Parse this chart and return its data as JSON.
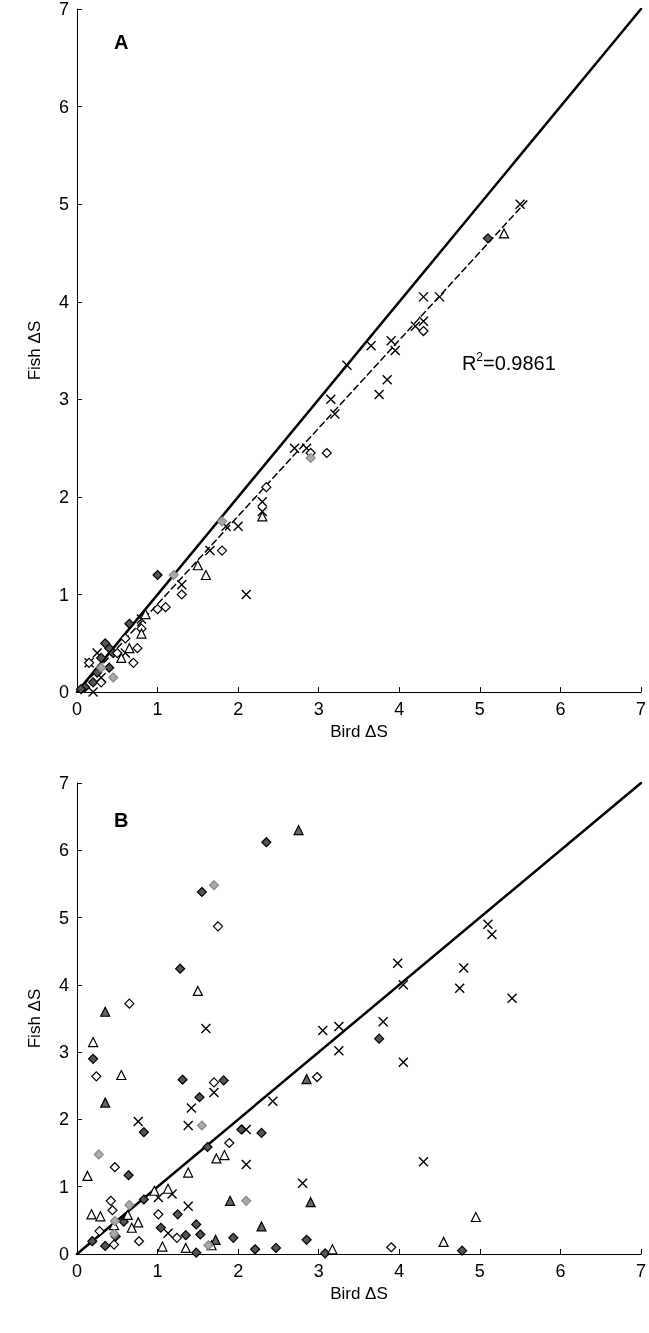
{
  "chart_data": [
    {
      "type": "scatter",
      "title": "A",
      "xlabel": "Bird ΔS",
      "ylabel": "Fish ΔS",
      "xlim": [
        0,
        7
      ],
      "ylim": [
        0,
        7
      ],
      "xticks": [
        0,
        1,
        2,
        3,
        4,
        5,
        6,
        7
      ],
      "yticks": [
        0,
        1,
        2,
        3,
        4,
        5,
        6,
        7
      ],
      "annotations": [
        "R$^{2}$=0.9861"
      ],
      "series": [
        {
          "type": "line",
          "color": "#000000",
          "marker": "none",
          "line_style": "solid",
          "x": [
            0,
            7
          ],
          "values": [
            0,
            7
          ]
        },
        {
          "type": "line",
          "color": "#000000",
          "marker": "none",
          "line_style": "dashed",
          "x": [
            0,
            5.6
          ],
          "values": [
            0,
            5.05
          ]
        },
        {
          "color": "#000000",
          "marker": "cross",
          "x": [
            5.5,
            4.5,
            4.3,
            4.2,
            4.3,
            3.9,
            3.95,
            3.65,
            3.75,
            3.85,
            3.35,
            3.15,
            3.2,
            2.7,
            2.85,
            2.3,
            2.3,
            2.1,
            2.0,
            1.85,
            1.65,
            1.3,
            0.8,
            0.6,
            0.3,
            0.25,
            0.2,
            0.15
          ],
          "values": [
            5.0,
            4.05,
            4.05,
            3.75,
            3.8,
            3.6,
            3.5,
            3.55,
            3.05,
            3.2,
            3.35,
            3.0,
            2.85,
            2.5,
            2.5,
            1.95,
            1.85,
            1.0,
            1.7,
            1.7,
            1.45,
            1.1,
            0.75,
            0.4,
            0.15,
            0.4,
            0.0,
            0.3
          ]
        },
        {
          "color": "#555555",
          "marker": "diamond",
          "x": [
            5.1,
            1.0,
            0.65,
            0.4,
            0.3,
            0.25,
            0.35,
            0.45,
            0.2,
            0.1,
            0.05,
            0.4
          ],
          "values": [
            4.65,
            1.2,
            0.7,
            0.45,
            0.35,
            0.2,
            0.5,
            0.4,
            0.1,
            0.05,
            0.03,
            0.25
          ]
        },
        {
          "color": "#ffffff",
          "marker": "diamond",
          "x": [
            4.3,
            3.1,
            2.9,
            2.35,
            1.8,
            1.3,
            1.1,
            1.0,
            0.8,
            0.75,
            0.6,
            0.5,
            0.15,
            0.3,
            0.7
          ],
          "values": [
            3.7,
            2.45,
            2.45,
            2.1,
            1.45,
            1.0,
            0.87,
            0.85,
            0.65,
            0.45,
            0.55,
            0.4,
            0.3,
            0.1,
            0.3
          ]
        },
        {
          "color": "#ffffff",
          "marker": "triangle",
          "x": [
            5.3,
            2.3,
            1.6,
            1.5,
            0.85,
            0.8,
            0.65,
            0.55
          ],
          "values": [
            4.7,
            1.8,
            1.2,
            1.3,
            0.8,
            0.6,
            0.45,
            0.35
          ]
        },
        {
          "color": "#aaaaaa",
          "marker": "diamond",
          "x": [
            1.2,
            1.8,
            2.9,
            0.45,
            0.3
          ],
          "values": [
            1.2,
            1.75,
            2.4,
            0.15,
            0.25
          ]
        }
      ]
    },
    {
      "type": "scatter",
      "title": "B",
      "xlabel": "Bird ΔS",
      "ylabel": "Fish ΔS",
      "xlim": [
        0,
        7
      ],
      "ylim": [
        0,
        7
      ],
      "xticks": [
        0,
        1,
        2,
        3,
        4,
        5,
        6,
        7
      ],
      "yticks": [
        0,
        1,
        2,
        3,
        4,
        5,
        6,
        7
      ],
      "series": [
        {
          "type": "line",
          "color": "#000000",
          "marker": "none",
          "line_style": "solid",
          "x": [
            0,
            7
          ],
          "values": [
            0,
            7
          ]
        },
        {
          "color": "#000000",
          "marker": "cross",
          "x": [
            5.1,
            5.15,
            5.4,
            4.8,
            4.75,
            3.98,
            4.05,
            4.05,
            3.8,
            3.25,
            3.05,
            3.25,
            4.3,
            0.76,
            1.42,
            1.7,
            1.38,
            2.1,
            2.1,
            2.43,
            2.8,
            1.01,
            1.18,
            1.38,
            1.13,
            1.6
          ],
          "values": [
            4.9,
            4.75,
            3.8,
            4.25,
            3.95,
            4.32,
            4.0,
            2.85,
            3.45,
            3.38,
            3.32,
            3.02,
            1.37,
            1.97,
            2.17,
            2.4,
            1.91,
            1.85,
            1.33,
            2.27,
            1.05,
            0.84,
            0.89,
            0.71,
            0.31,
            3.35
          ]
        },
        {
          "color": "#555555",
          "marker": "diamond",
          "x": [
            2.35,
            1.55,
            1.28,
            3.75,
            4.78,
            0.2,
            1.31,
            1.52,
            1.82,
            0.83,
            0.64,
            2.04,
            2.29,
            1.62,
            1.25,
            1.48,
            1.04,
            1.35,
            1.53,
            1.94,
            1.48,
            2.21,
            2.47,
            2.85,
            3.08,
            0.35,
            0.58,
            0.19,
            0.48,
            0.83
          ],
          "values": [
            6.12,
            5.38,
            4.24,
            3.2,
            0.05,
            2.9,
            2.59,
            2.33,
            2.58,
            1.81,
            1.17,
            1.85,
            1.8,
            1.59,
            0.59,
            0.44,
            0.39,
            0.28,
            0.29,
            0.24,
            0.02,
            0.07,
            0.09,
            0.21,
            0.01,
            0.12,
            0.48,
            0.19,
            0.26,
            0.81
          ]
        },
        {
          "color": "#666666",
          "marker": "triangle",
          "x": [
            2.75,
            0.35,
            0.35,
            2.85,
            1.9,
            2.9,
            2.29,
            1.72
          ],
          "values": [
            6.3,
            3.6,
            2.25,
            2.6,
            0.79,
            0.77,
            0.41,
            0.21
          ]
        },
        {
          "color": "#ffffff",
          "marker": "diamond",
          "x": [
            1.75,
            0.65,
            0.24,
            1.7,
            2.98,
            1.89,
            0.47,
            0.42,
            0.44,
            1.01,
            0.77,
            1.24,
            0.46,
            0.28,
            3.9
          ],
          "values": [
            4.87,
            3.72,
            2.64,
            2.55,
            2.63,
            1.65,
            1.29,
            0.79,
            0.65,
            0.59,
            0.19,
            0.24,
            0.14,
            0.34,
            0.1
          ]
        },
        {
          "color": "#ffffff",
          "marker": "triangle",
          "x": [
            1.5,
            0.2,
            0.55,
            1.73,
            1.83,
            1.38,
            0.13,
            0.18,
            0.29,
            0.76,
            0.68,
            0.63,
            1.13,
            0.96,
            1.06,
            1.35,
            1.67,
            3.17,
            0.46,
            4.55,
            4.95
          ],
          "values": [
            3.91,
            3.15,
            2.66,
            1.42,
            1.47,
            1.21,
            1.16,
            0.59,
            0.56,
            0.47,
            0.39,
            0.58,
            0.97,
            0.94,
            0.11,
            0.09,
            0.13,
            0.07,
            0.43,
            0.18,
            0.55
          ]
        },
        {
          "color": "#aaaaaa",
          "marker": "diamond",
          "x": [
            1.7,
            0.27,
            1.55,
            2.1,
            0.65,
            0.47,
            1.63,
            0.46
          ],
          "values": [
            5.48,
            1.48,
            1.91,
            0.79,
            0.73,
            0.49,
            0.13,
            0.3
          ]
        }
      ]
    }
  ]
}
